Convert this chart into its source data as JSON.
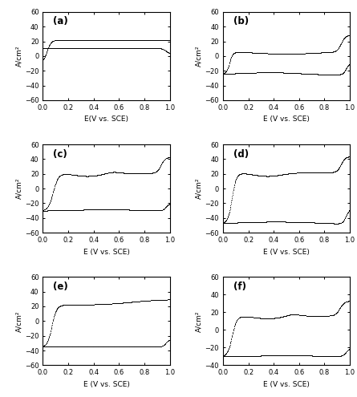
{
  "panels": [
    {
      "label": "(a)",
      "xlabel": "E(V vs. SCE)",
      "ylim": [
        -60,
        60
      ],
      "xlim": [
        0.0,
        1.0
      ],
      "yticks": [
        -60,
        -40,
        -20,
        0,
        20,
        40,
        60
      ],
      "xticks": [
        0.0,
        0.2,
        0.4,
        0.6,
        0.8,
        1.0
      ],
      "cv_type": "a"
    },
    {
      "label": "(b)",
      "xlabel": "E (V vs. SCE)",
      "ylim": [
        -60,
        60
      ],
      "xlim": [
        0.0,
        1.0
      ],
      "yticks": [
        -60,
        -40,
        -20,
        0,
        20,
        40,
        60
      ],
      "xticks": [
        0.0,
        0.2,
        0.4,
        0.6,
        0.8,
        1.0
      ],
      "cv_type": "b"
    },
    {
      "label": "(c)",
      "xlabel": "E (V vs. SCE)",
      "ylim": [
        -60,
        60
      ],
      "xlim": [
        0.0,
        1.0
      ],
      "yticks": [
        -60,
        -40,
        -20,
        0,
        20,
        40,
        60
      ],
      "xticks": [
        0.0,
        0.2,
        0.4,
        0.6,
        0.8,
        1.0
      ],
      "cv_type": "c"
    },
    {
      "label": "(d)",
      "xlabel": "E (V vs. SCE)",
      "ylim": [
        -60,
        60
      ],
      "xlim": [
        0.0,
        1.0
      ],
      "yticks": [
        -60,
        -40,
        -20,
        0,
        20,
        40,
        60
      ],
      "xticks": [
        0.0,
        0.2,
        0.4,
        0.6,
        0.8,
        1.0
      ],
      "cv_type": "d"
    },
    {
      "label": "(e)",
      "xlabel": "E (V vs. SCE)",
      "ylim": [
        -60,
        60
      ],
      "xlim": [
        0.0,
        1.0
      ],
      "yticks": [
        -60,
        -40,
        -20,
        0,
        20,
        40,
        60
      ],
      "xticks": [
        0.0,
        0.2,
        0.4,
        0.6,
        0.8,
        1.0
      ],
      "cv_type": "e"
    },
    {
      "label": "(f)",
      "xlabel": "E (V vs. SCE)",
      "ylim": [
        -40,
        60
      ],
      "xlim": [
        0.0,
        1.0
      ],
      "yticks": [
        -40,
        -20,
        0,
        20,
        40,
        60
      ],
      "xticks": [
        0.0,
        0.2,
        0.4,
        0.6,
        0.8,
        1.0
      ],
      "cv_type": "f"
    }
  ],
  "ylabel": "A/cm²",
  "line_color": "black"
}
